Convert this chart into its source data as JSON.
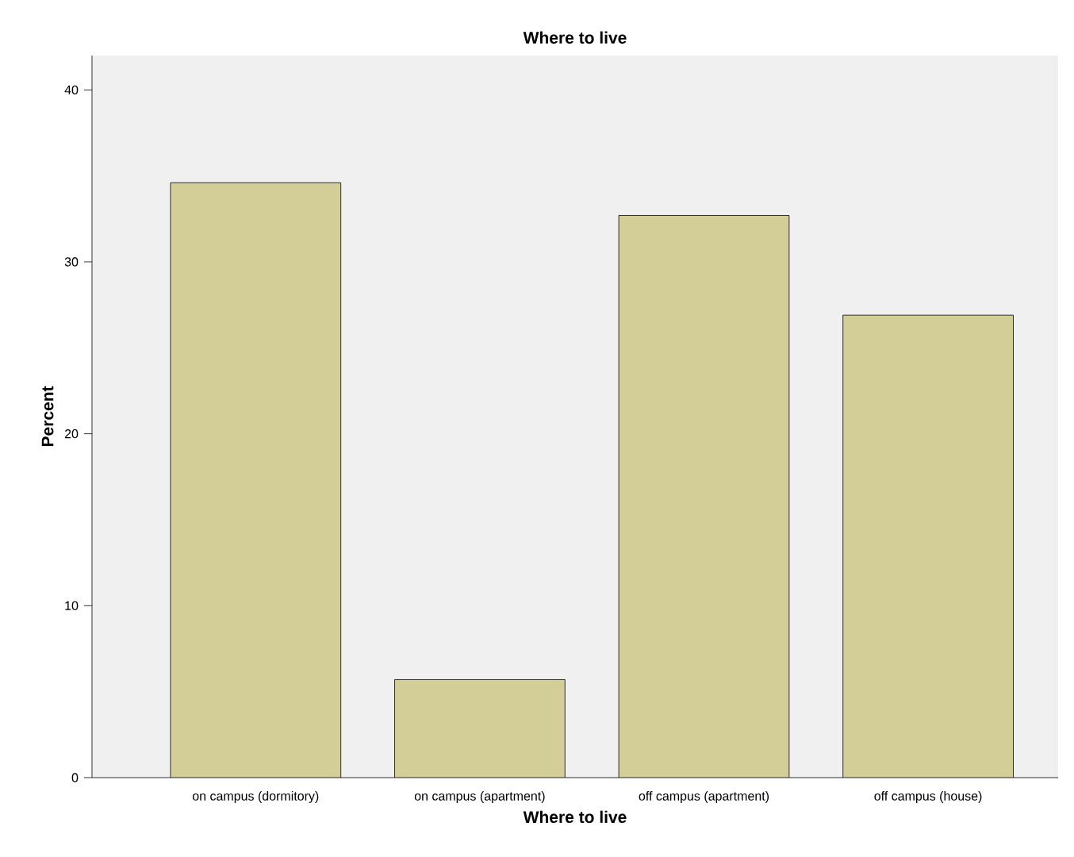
{
  "chart_data": {
    "type": "bar",
    "title": "Where to live",
    "xlabel": "Where to live",
    "ylabel": "Percent",
    "categories": [
      "on campus (dormitory)",
      "on campus (apartment)",
      "off campus (apartment)",
      "off campus (house)"
    ],
    "values": [
      34.6,
      5.7,
      32.7,
      26.9
    ],
    "color": "#d3ce97",
    "ylim": [
      0,
      42
    ],
    "yticks": [
      0,
      10,
      20,
      30,
      40
    ],
    "grid": false
  }
}
